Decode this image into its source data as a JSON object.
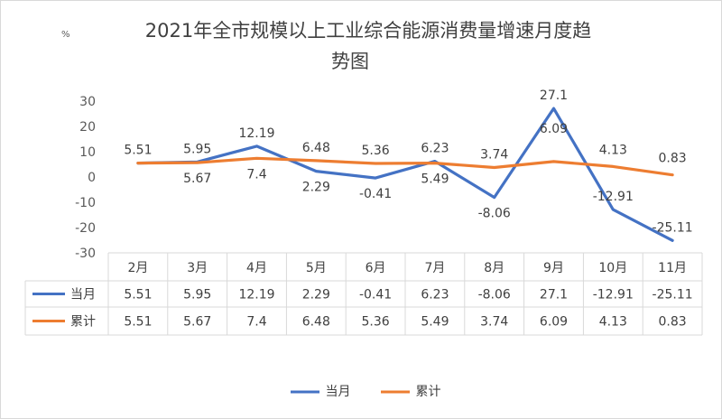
{
  "chart_data": {
    "type": "line",
    "title_line1": "2021年全市规模以上工业综合能源消费量增速月度趋",
    "title_line2": "势图",
    "unit": "%",
    "categories": [
      "2月",
      "3月",
      "4月",
      "5月",
      "6月",
      "7月",
      "8月",
      "9月",
      "10月",
      "11月"
    ],
    "y_ticks": [
      "30",
      "20",
      "10",
      "0",
      "-10",
      "-20",
      "-30"
    ],
    "ylim": [
      -30,
      30
    ],
    "series": [
      {
        "name": "当月",
        "color": "#4472c4",
        "values": [
          5.51,
          5.95,
          12.19,
          2.29,
          -0.41,
          6.23,
          -8.06,
          27.1,
          -12.91,
          -25.11
        ],
        "labels": [
          "5.51",
          "5.95",
          "12.19",
          "2.29",
          "-0.41",
          "6.23",
          "-8.06",
          "27.1",
          "-12.91",
          "-25.11"
        ]
      },
      {
        "name": "累计",
        "color": "#ed7d31",
        "values": [
          5.51,
          5.67,
          7.4,
          6.48,
          5.36,
          5.49,
          3.74,
          6.09,
          4.13,
          0.83
        ],
        "labels": [
          "5.51",
          "5.67",
          "7.4",
          "6.48",
          "5.36",
          "5.49",
          "3.74",
          "6.09",
          "4.13",
          "0.83"
        ]
      }
    ],
    "grid": false,
    "data_table": true,
    "legend_position": "bottom"
  }
}
